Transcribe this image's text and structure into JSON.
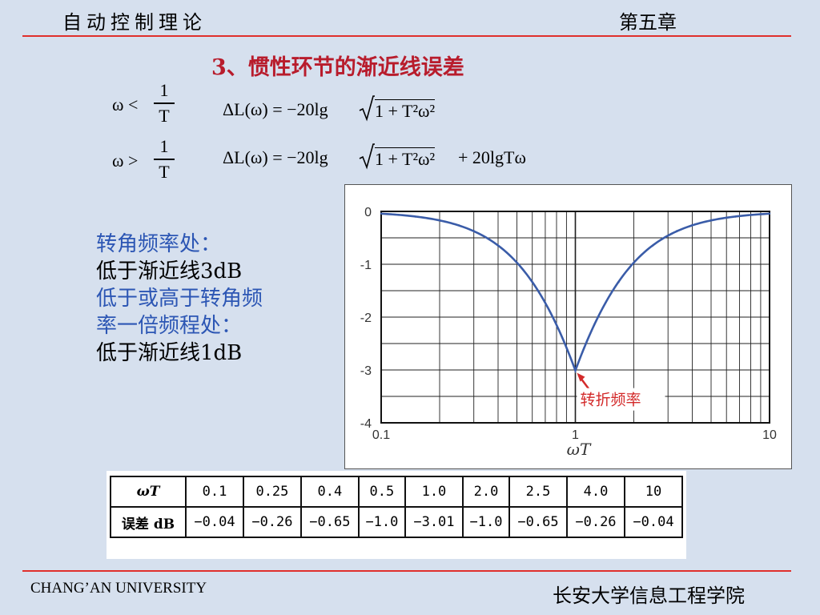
{
  "header": {
    "course": "自动控制理论",
    "chapter": "第五章"
  },
  "title": "3、惯性环节的渐近线误差",
  "formulas": {
    "row1": {
      "cond_lhs": "ω <",
      "frac_num": "1",
      "frac_den": "T",
      "expr_left": "ΔL(ω) = −20lg",
      "expr_rad": "1 + T²ω²",
      "expr_tail": ""
    },
    "row2": {
      "cond_lhs": "ω >",
      "frac_num": "1",
      "frac_den": "T",
      "expr_left": "ΔL(ω) = −20lg",
      "expr_rad": "1 + T²ω²",
      "expr_tail": "+ 20lgTω"
    }
  },
  "notes": {
    "line1": "转角频率处：",
    "line2": "低于渐近线3dB",
    "line3": "低于或高于转角频",
    "line4": "率一倍频程处：",
    "line5": "低于渐近线1dB"
  },
  "chart_data": {
    "type": "line",
    "xscale": "log",
    "xlim": [
      0.1,
      10
    ],
    "ylim": [
      -4,
      0
    ],
    "xlabel": "ωT",
    "xticks": [
      "0.1",
      "1",
      "10"
    ],
    "yticks": [
      "0",
      "-1",
      "-2",
      "-3",
      "-4"
    ],
    "grid": true,
    "annotation": "转折频率",
    "series_color": "#3a5ca8",
    "annotation_color": "#d32a2a",
    "x": [
      0.1,
      0.15,
      0.2,
      0.25,
      0.3,
      0.4,
      0.5,
      0.6,
      0.7,
      0.8,
      0.9,
      1.0,
      1.11,
      1.25,
      1.43,
      1.67,
      2.0,
      2.5,
      3.33,
      4.0,
      5.0,
      6.67,
      10
    ],
    "y": [
      -0.04,
      -0.1,
      -0.17,
      -0.26,
      -0.37,
      -0.65,
      -0.97,
      -1.34,
      -1.73,
      -2.15,
      -2.58,
      -3.01,
      -2.58,
      -2.15,
      -1.73,
      -1.34,
      -0.97,
      -0.65,
      -0.37,
      -0.26,
      -0.17,
      -0.1,
      -0.04
    ]
  },
  "table": {
    "row1_header": "ωT",
    "row2_header": "误差 dB",
    "x": [
      "0.1",
      "0.25",
      "0.4",
      "0.5",
      "1.0",
      "2.0",
      "2.5",
      "4.0",
      "10"
    ],
    "err": [
      "−0.04",
      "−0.26",
      "−0.65",
      "−1.0",
      "−3.01",
      "−1.0",
      "−0.65",
      "−0.26",
      "−0.04"
    ]
  },
  "footer": {
    "left": "CHANG’AN UNIVERSITY",
    "right": "长安大学信息工程学院"
  }
}
